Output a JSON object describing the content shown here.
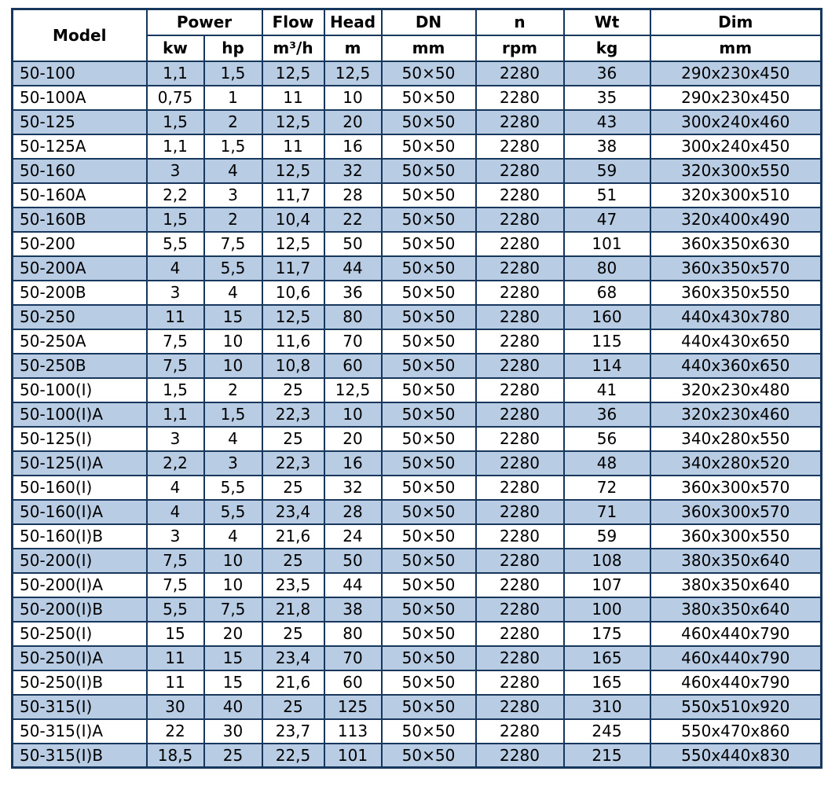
{
  "table": {
    "header": {
      "model": "Model",
      "power": "Power",
      "flow": "Flow",
      "head": "Head",
      "dn": "DN",
      "n": "n",
      "wt": "Wt",
      "dim": "Dim",
      "units": {
        "kw": "kw",
        "hp": "hp",
        "flow": "m³/h",
        "head": "m",
        "dn": "mm",
        "n": "rpm",
        "wt": "kg",
        "dim": "mm"
      }
    },
    "colors": {
      "border": "#17375d",
      "shaded_row": "#b8cce4",
      "text": "#000000"
    },
    "rows": [
      [
        "50-100",
        "1,1",
        "1,5",
        "12,5",
        "12,5",
        "50×50",
        "2280",
        "36",
        "290x230x450"
      ],
      [
        "50-100A",
        "0,75",
        "1",
        "11",
        "10",
        "50×50",
        "2280",
        "35",
        "290x230x450"
      ],
      [
        "50-125",
        "1,5",
        "2",
        "12,5",
        "20",
        "50×50",
        "2280",
        "43",
        "300x240x460"
      ],
      [
        "50-125A",
        "1,1",
        "1,5",
        "11",
        "16",
        "50×50",
        "2280",
        "38",
        "300x240x450"
      ],
      [
        "50-160",
        "3",
        "4",
        "12,5",
        "32",
        "50×50",
        "2280",
        "59",
        "320x300x550"
      ],
      [
        "50-160A",
        "2,2",
        "3",
        "11,7",
        "28",
        "50×50",
        "2280",
        "51",
        "320x300x510"
      ],
      [
        "50-160B",
        "1,5",
        "2",
        "10,4",
        "22",
        "50×50",
        "2280",
        "47",
        "320x400x490"
      ],
      [
        "50-200",
        "5,5",
        "7,5",
        "12,5",
        "50",
        "50×50",
        "2280",
        "101",
        "360x350x630"
      ],
      [
        "50-200A",
        "4",
        "5,5",
        "11,7",
        "44",
        "50×50",
        "2280",
        "80",
        "360x350x570"
      ],
      [
        "50-200B",
        "3",
        "4",
        "10,6",
        "36",
        "50×50",
        "2280",
        "68",
        "360x350x550"
      ],
      [
        "50-250",
        "11",
        "15",
        "12,5",
        "80",
        "50×50",
        "2280",
        "160",
        "440x430x780"
      ],
      [
        "50-250A",
        "7,5",
        "10",
        "11,6",
        "70",
        "50×50",
        "2280",
        "115",
        "440x430x650"
      ],
      [
        "50-250B",
        "7,5",
        "10",
        "10,8",
        "60",
        "50×50",
        "2280",
        "114",
        "440x360x650"
      ],
      [
        "50-100(I)",
        "1,5",
        "2",
        "25",
        "12,5",
        "50×50",
        "2280",
        "41",
        "320x230x480"
      ],
      [
        "50-100(I)A",
        "1,1",
        "1,5",
        "22,3",
        "10",
        "50×50",
        "2280",
        "36",
        "320x230x460"
      ],
      [
        "50-125(I)",
        "3",
        "4",
        "25",
        "20",
        "50×50",
        "2280",
        "56",
        "340x280x550"
      ],
      [
        "50-125(I)A",
        "2,2",
        "3",
        "22,3",
        "16",
        "50×50",
        "2280",
        "48",
        "340x280x520"
      ],
      [
        "50-160(I)",
        "4",
        "5,5",
        "25",
        "32",
        "50×50",
        "2280",
        "72",
        "360x300x570"
      ],
      [
        "50-160(I)A",
        "4",
        "5,5",
        "23,4",
        "28",
        "50×50",
        "2280",
        "71",
        "360x300x570"
      ],
      [
        "50-160(I)B",
        "3",
        "4",
        "21,6",
        "24",
        "50×50",
        "2280",
        "59",
        "360x300x550"
      ],
      [
        "50-200(I)",
        "7,5",
        "10",
        "25",
        "50",
        "50×50",
        "2280",
        "108",
        "380x350x640"
      ],
      [
        "50-200(I)A",
        "7,5",
        "10",
        "23,5",
        "44",
        "50×50",
        "2280",
        "107",
        "380x350x640"
      ],
      [
        "50-200(I)B",
        "5,5",
        "7,5",
        "21,8",
        "38",
        "50×50",
        "2280",
        "100",
        "380x350x640"
      ],
      [
        "50-250(I)",
        "15",
        "20",
        "25",
        "80",
        "50×50",
        "2280",
        "175",
        "460x440x790"
      ],
      [
        "50-250(I)A",
        "11",
        "15",
        "23,4",
        "70",
        "50×50",
        "2280",
        "165",
        "460x440x790"
      ],
      [
        "50-250(I)B",
        "11",
        "15",
        "21,6",
        "60",
        "50×50",
        "2280",
        "165",
        "460x440x790"
      ],
      [
        "50-315(I)",
        "30",
        "40",
        "25",
        "125",
        "50×50",
        "2280",
        "310",
        "550x510x920"
      ],
      [
        "50-315(I)A",
        "22",
        "30",
        "23,7",
        "113",
        "50×50",
        "2280",
        "245",
        "550x470x860"
      ],
      [
        "50-315(I)B",
        "18,5",
        "25",
        "22,5",
        "101",
        "50×50",
        "2280",
        "215",
        "550x440x830"
      ]
    ]
  }
}
